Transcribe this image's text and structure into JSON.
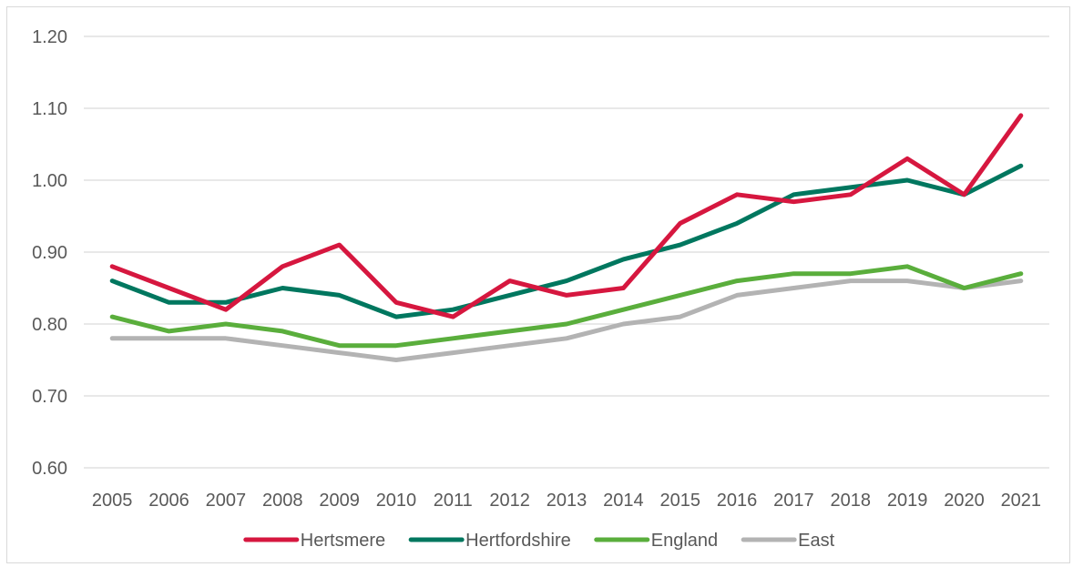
{
  "chart_data": {
    "type": "line",
    "title": "",
    "xlabel": "",
    "ylabel": "",
    "categories": [
      "2005",
      "2006",
      "2007",
      "2008",
      "2009",
      "2010",
      "2011",
      "2012",
      "2013",
      "2014",
      "2015",
      "2016",
      "2017",
      "2018",
      "2019",
      "2020",
      "2021"
    ],
    "ylim": [
      0.6,
      1.2
    ],
    "yticks": [
      "0.60",
      "0.70",
      "0.80",
      "0.90",
      "1.00",
      "1.10",
      "1.20"
    ],
    "grid": true,
    "legend_position": "bottom",
    "series": [
      {
        "name": "Hertsmere",
        "color": "#d6173f",
        "values": [
          0.88,
          0.85,
          0.82,
          0.88,
          0.91,
          0.83,
          0.81,
          0.86,
          0.84,
          0.85,
          0.94,
          0.98,
          0.97,
          0.98,
          1.03,
          0.98,
          1.09
        ]
      },
      {
        "name": "Hertfordshire",
        "color": "#00775f",
        "values": [
          0.86,
          0.83,
          0.83,
          0.85,
          0.84,
          0.81,
          0.82,
          0.84,
          0.86,
          0.89,
          0.91,
          0.94,
          0.98,
          0.99,
          1.0,
          0.98,
          1.02
        ]
      },
      {
        "name": "England",
        "color": "#5aae3c",
        "values": [
          0.81,
          0.79,
          0.8,
          0.79,
          0.77,
          0.77,
          0.78,
          0.79,
          0.8,
          0.82,
          0.84,
          0.86,
          0.87,
          0.87,
          0.88,
          0.85,
          0.87
        ]
      },
      {
        "name": "East",
        "color": "#b3b3b3",
        "values": [
          0.78,
          0.78,
          0.78,
          0.77,
          0.76,
          0.75,
          0.76,
          0.77,
          0.78,
          0.8,
          0.81,
          0.84,
          0.85,
          0.86,
          0.86,
          0.85,
          0.86
        ]
      }
    ]
  }
}
